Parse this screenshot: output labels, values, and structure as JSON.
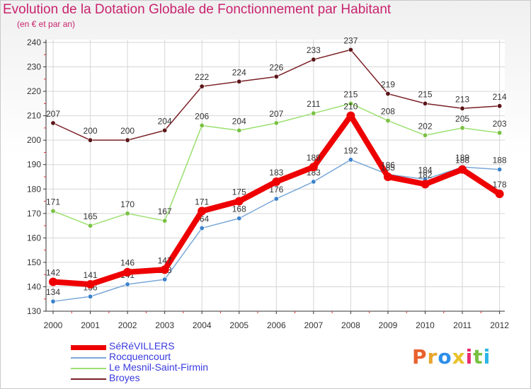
{
  "header": {
    "title": "Evolution de la Dotation Globale de Fonctionnement par Habitant",
    "subtitle": "(en € et par an)"
  },
  "logo": {
    "text": "Proxiti",
    "colors": [
      "#e8612c",
      "#e8a52c",
      "#2c8ee8",
      "#e8c22c",
      "#e82c6e",
      "#7ac142",
      "#2cb4e8"
    ]
  },
  "chart_data": {
    "type": "line",
    "title": "Evolution de la Dotation Globale de Fonctionnement par Habitant",
    "subtitle": "(en € et par an)",
    "x": [
      "2000",
      "2001",
      "2002",
      "2003",
      "2004",
      "2005",
      "2006",
      "2007",
      "2008",
      "2009",
      "2010",
      "2011",
      "2012"
    ],
    "ylim": [
      130,
      240
    ],
    "yticks": [
      130,
      140,
      150,
      160,
      170,
      180,
      190,
      200,
      210,
      220,
      230,
      240
    ],
    "grid": true,
    "legend_position": "bottom-left",
    "series": [
      {
        "name": "Broyes",
        "color": "#7a1f24",
        "marker": "#5a1518",
        "values": [
          207,
          200,
          200,
          204,
          222,
          224,
          226,
          233,
          237,
          219,
          215,
          213,
          214
        ]
      },
      {
        "name": "Le Mesnil-Saint-Firmin",
        "color": "#9be070",
        "marker": "#7ac142",
        "values": [
          171,
          165,
          170,
          167,
          206,
          204,
          207,
          211,
          215,
          208,
          202,
          205,
          203
        ]
      },
      {
        "name": "Rocquencourt",
        "color": "#7aa8d8",
        "marker": "#3a82cc",
        "values": [
          134,
          136,
          141,
          143,
          164,
          168,
          176,
          183,
          192,
          186,
          184,
          189,
          188
        ]
      },
      {
        "name": "SéRéVILLERS",
        "color": "#ee0000",
        "marker": "#ee0000",
        "values": [
          142,
          141,
          146,
          147,
          171,
          175,
          183,
          189,
          210,
          185,
          182,
          188,
          178
        ]
      }
    ]
  }
}
